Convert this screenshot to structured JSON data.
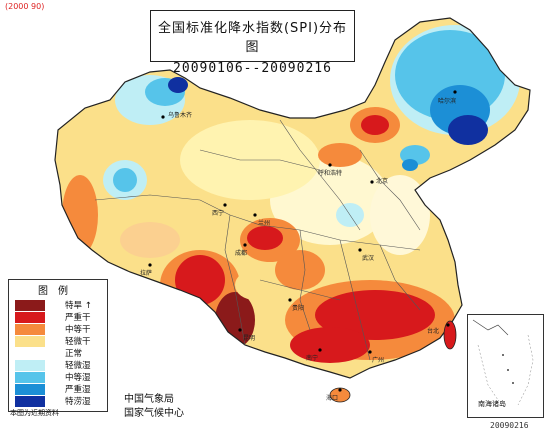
{
  "header": {
    "watermark": "(2000 90)",
    "title": "全国标准化降水指数(SPI)分布图",
    "period": "20090106--20090216",
    "date_stamp": "20090216"
  },
  "legend": {
    "title": "图例",
    "items": [
      {
        "label": "特旱 ↑",
        "color": "#8b1a1a"
      },
      {
        "label": "严重干",
        "color": "#d7191c"
      },
      {
        "label": "中等干",
        "color": "#f58a3c"
      },
      {
        "label": "轻微干",
        "color": "#fbe08a"
      },
      {
        "label": "正常",
        "color": "#ffffff"
      },
      {
        "label": "轻微湿",
        "color": "#bfeef5"
      },
      {
        "label": "中等湿",
        "color": "#56c4ea"
      },
      {
        "label": "严重湿",
        "color": "#1c8fd6"
      },
      {
        "label": "特涝湿",
        "color": "#1030a0"
      }
    ],
    "footer_note": "本图为近期资料"
  },
  "credits": {
    "agency": "中国气象局",
    "center": "国家气候中心"
  },
  "inset": {
    "label": "南海诸岛"
  },
  "cities": [
    {
      "name": "正常"
    },
    {
      "name": "乌鲁木齐"
    },
    {
      "name": "哈尔滨"
    },
    {
      "name": "呼和浩特"
    },
    {
      "name": "北京"
    },
    {
      "name": "西宁"
    },
    {
      "name": "兰州"
    },
    {
      "name": "拉萨"
    },
    {
      "name": "成都"
    },
    {
      "name": "武汉"
    },
    {
      "name": "贵阳"
    },
    {
      "name": "昆明"
    },
    {
      "name": "南宁"
    },
    {
      "name": "广州"
    },
    {
      "name": "台北"
    },
    {
      "name": "海口"
    }
  ]
}
